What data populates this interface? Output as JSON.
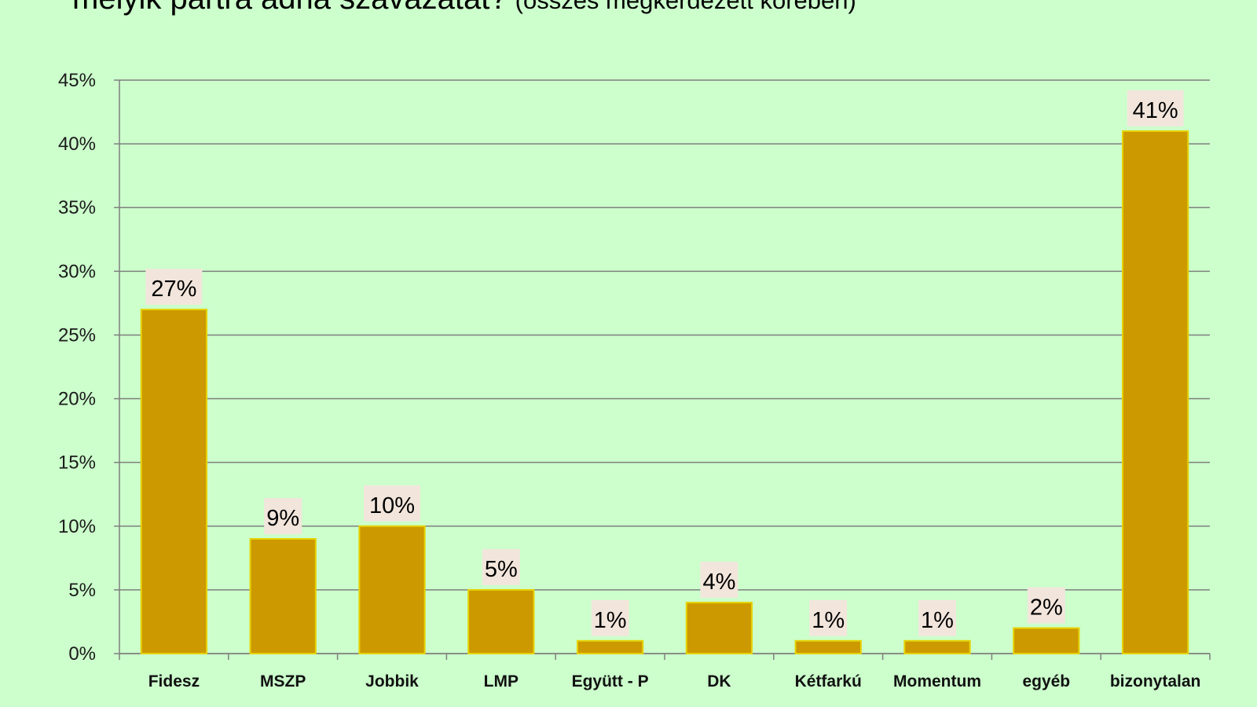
{
  "title": {
    "main": "melyik pártra adná szavazatát?",
    "sub": "(összes megkérdezett körében)"
  },
  "colors": {
    "background": "#ccffcc",
    "bar": "#cc9900",
    "bar_border": "#e6d200",
    "gridline": "#7f7f7f",
    "label_bg": "#f2e6dc"
  },
  "chart_data": {
    "type": "bar",
    "categories": [
      "Fidesz",
      "MSZP",
      "Jobbik",
      "LMP",
      "Együtt - P",
      "DK",
      "Kétfarkú",
      "Momentum",
      "egyéb",
      "bizonytalan"
    ],
    "values": [
      27,
      9,
      10,
      5,
      1,
      4,
      1,
      1,
      2,
      41
    ],
    "data_labels": [
      "27%",
      "9%",
      "10%",
      "5%",
      "1%",
      "4%",
      "1%",
      "1%",
      "2%",
      "41%"
    ],
    "ylim": [
      0,
      45
    ],
    "ytick_values": [
      0,
      5,
      10,
      15,
      20,
      25,
      30,
      35,
      40,
      45
    ],
    "ytick_labels": [
      "0%",
      "5%",
      "10%",
      "15%",
      "20%",
      "25%",
      "30%",
      "35%",
      "40%",
      "45%"
    ],
    "grid": true,
    "xlabel": "",
    "ylabel": ""
  }
}
